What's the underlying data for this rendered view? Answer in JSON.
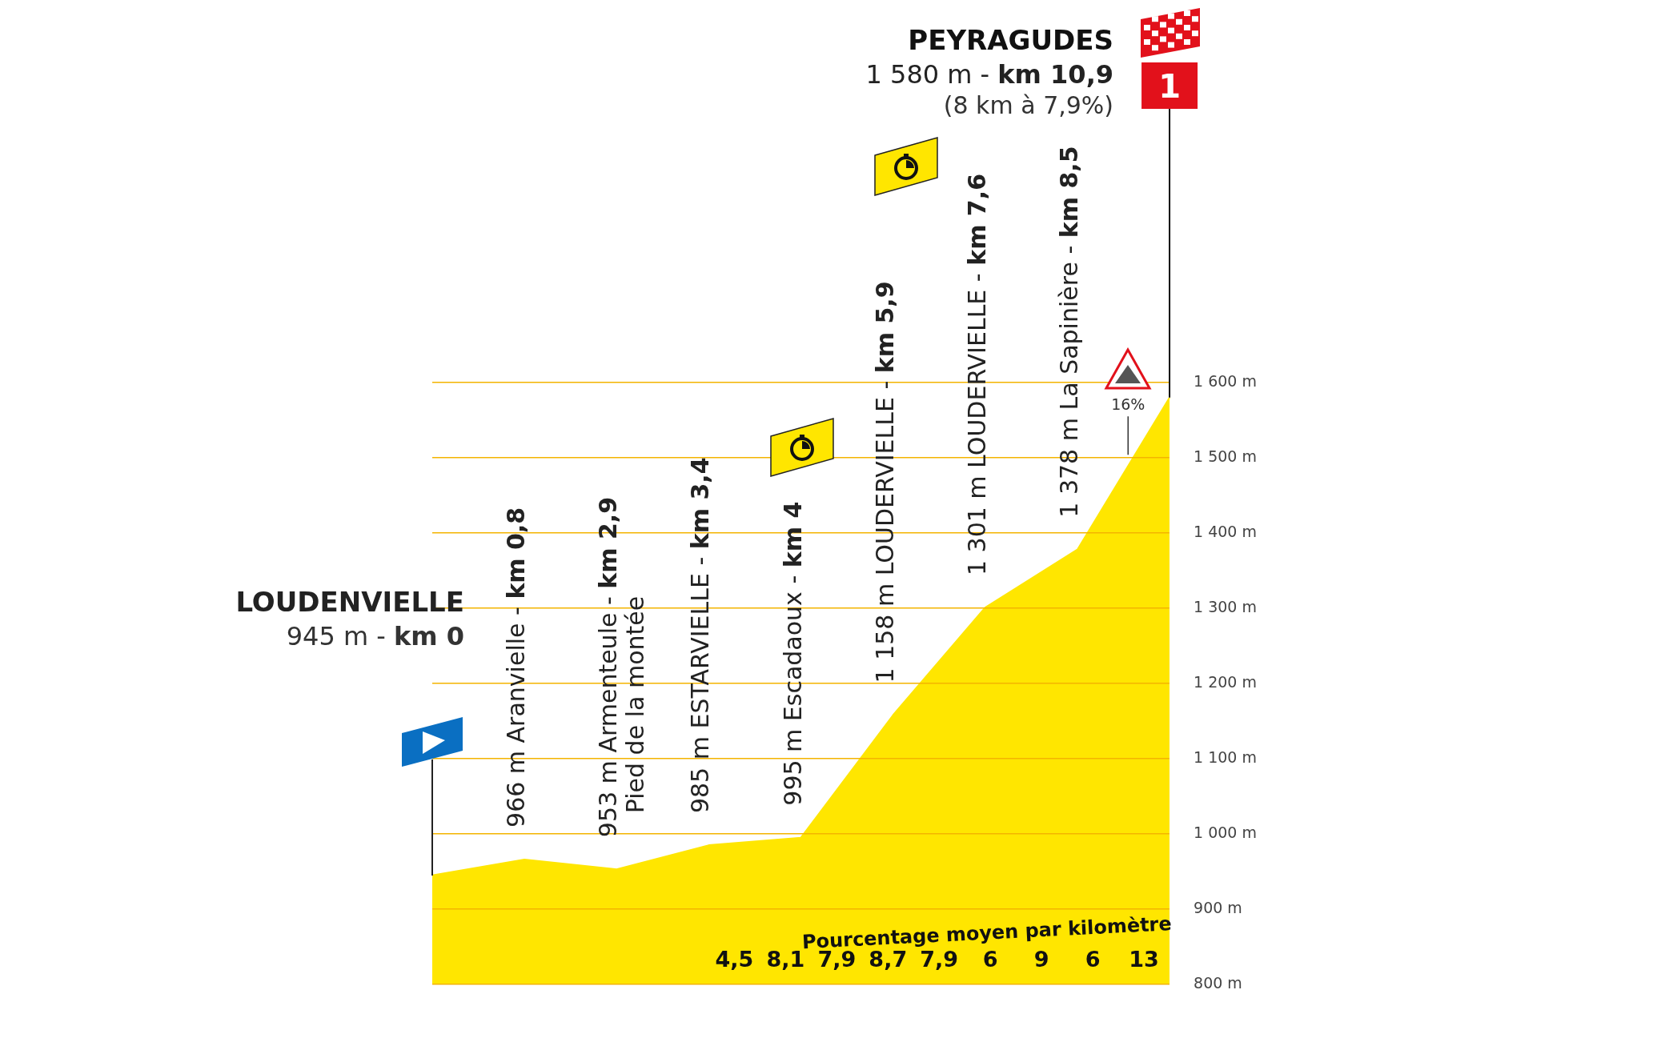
{
  "chart_data": {
    "type": "area",
    "categories": [
      null,
      null,
      null,
      null,
      null,
      null,
      null,
      null,
      null
    ],
    "values": [
      945,
      966,
      953,
      985,
      995,
      1158,
      1301,
      1378,
      1580
    ],
    "color": "#ffe600",
    "ylim": [
      800,
      1600
    ],
    "yticks": [
      {
        "value": 800,
        "label": "800 m"
      },
      {
        "value": 900,
        "label": "900 m"
      },
      {
        "value": 1000,
        "label": "1 000 m"
      },
      {
        "value": 1100,
        "label": "1 100 m"
      },
      {
        "value": 1200,
        "label": "1 200 m"
      },
      {
        "value": 1300,
        "label": "1 300 m"
      },
      {
        "value": 1400,
        "label": "1 400 m"
      },
      {
        "value": 1500,
        "label": "1 500 m"
      },
      {
        "value": 1600,
        "label": "1 600 m"
      }
    ],
    "tick_labels": "y",
    "grid": "y",
    "legend": false,
    "annotations": [
      "LOUDENVIELLE",
      "945 m - km 0",
      "966 m Aranvielle - km 0,8",
      "953 m Armenteule - km 2,9",
      "Pied de la montée",
      "985 m ESTARVIELLE - km 3,4",
      "995 m Escadaoux - km 4",
      "1 158 m LOUDERVIELLE - km 5,9",
      "1 301 m LOUDERVIELLE - km 7,6",
      "1 378 m La Sapinière - km 8,5",
      "PEYRAGUDES",
      "1 580 m - km 10,9",
      "(8 km à 7,9%)",
      "1",
      "16%",
      "Pourcentage moyen par kilomètre",
      "4,5",
      "8,1",
      "7,9",
      "8,7",
      "7,9",
      "6",
      "9",
      "6",
      "13"
    ]
  }
}
